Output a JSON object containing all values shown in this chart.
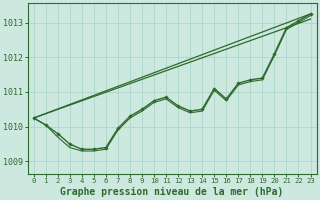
{
  "background_color": "#cde8df",
  "plot_bg_color": "#cde8df",
  "grid_color": "#b0d8cc",
  "line_color": "#2d6a2d",
  "title": "Graphe pression niveau de la mer (hPa)",
  "ylabel_ticks": [
    1009,
    1010,
    1011,
    1012,
    1013
  ],
  "xlim": [
    -0.5,
    23.5
  ],
  "ylim": [
    1008.65,
    1013.55
  ],
  "xticks": [
    0,
    1,
    2,
    3,
    4,
    5,
    6,
    7,
    8,
    9,
    10,
    11,
    12,
    13,
    14,
    15,
    16,
    17,
    18,
    19,
    20,
    21,
    22,
    23
  ],
  "series_straight1": {
    "x": [
      0,
      23
    ],
    "y": [
      1010.25,
      1013.25
    ]
  },
  "series_straight2": {
    "x": [
      0,
      23
    ],
    "y": [
      1010.25,
      1013.1
    ]
  },
  "series_wavy": [
    1010.25,
    1010.05,
    1009.8,
    1009.5,
    1009.35,
    1009.35,
    1009.4,
    1009.95,
    1010.3,
    1010.5,
    1010.75,
    1010.85,
    1010.6,
    1010.45,
    1010.5,
    1011.1,
    1010.8,
    1011.25,
    1011.35,
    1011.4,
    1012.1,
    1012.85,
    1013.05,
    1013.25
  ],
  "series_low": [
    1010.25,
    1010.05,
    1009.7,
    1009.4,
    1009.3,
    1009.3,
    1009.35,
    1009.9,
    1010.25,
    1010.45,
    1010.7,
    1010.8,
    1010.55,
    1010.4,
    1010.45,
    1011.05,
    1010.75,
    1011.2,
    1011.3,
    1011.35,
    1012.05,
    1012.8,
    1013.0,
    1013.2
  ]
}
